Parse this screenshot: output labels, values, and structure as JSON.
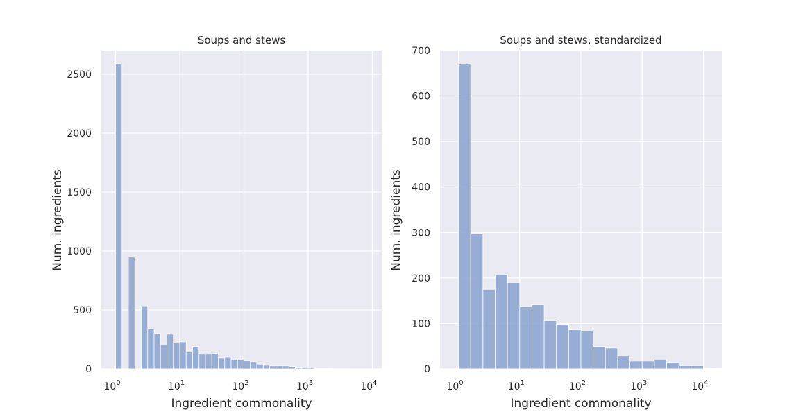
{
  "chart_data": [
    {
      "type": "bar",
      "title": "Soups and stews",
      "xlabel": "Ingredient commonality",
      "ylabel": "Num. ingredients",
      "x_scale": "log",
      "xlim": [
        0.6,
        14000
      ],
      "ylim": [
        0,
        2700
      ],
      "grid": true,
      "x_ticks": [
        {
          "base": "10",
          "exp": "0",
          "value": 1
        },
        {
          "base": "10",
          "exp": "1",
          "value": 10
        },
        {
          "base": "10",
          "exp": "2",
          "value": 100
        },
        {
          "base": "10",
          "exp": "3",
          "value": 1000
        },
        {
          "base": "10",
          "exp": "4",
          "value": 10000
        }
      ],
      "y_ticks": [
        "0",
        "500",
        "1000",
        "1500",
        "2000",
        "2500"
      ],
      "y_tick_values": [
        0,
        500,
        1000,
        1500,
        2000,
        2500
      ],
      "bin_width_log10": 0.1,
      "bins": [
        {
          "x0": 1.0,
          "value": 2585
        },
        {
          "x0": 1.5849,
          "value": 950
        },
        {
          "x0": 2.5119,
          "value": 535
        },
        {
          "x0": 3.1623,
          "value": 340
        },
        {
          "x0": 3.9811,
          "value": 300
        },
        {
          "x0": 5.0119,
          "value": 210
        },
        {
          "x0": 6.3096,
          "value": 295
        },
        {
          "x0": 7.9433,
          "value": 220
        },
        {
          "x0": 10.0,
          "value": 230
        },
        {
          "x0": 12.589,
          "value": 145
        },
        {
          "x0": 15.849,
          "value": 190
        },
        {
          "x0": 19.953,
          "value": 125
        },
        {
          "x0": 25.119,
          "value": 125
        },
        {
          "x0": 31.623,
          "value": 130
        },
        {
          "x0": 39.811,
          "value": 95
        },
        {
          "x0": 50.119,
          "value": 100
        },
        {
          "x0": 63.096,
          "value": 80
        },
        {
          "x0": 79.433,
          "value": 80
        },
        {
          "x0": 100.0,
          "value": 70
        },
        {
          "x0": 125.89,
          "value": 60
        },
        {
          "x0": 158.49,
          "value": 40
        },
        {
          "x0": 199.53,
          "value": 30
        },
        {
          "x0": 251.19,
          "value": 25
        },
        {
          "x0": 316.23,
          "value": 25
        },
        {
          "x0": 398.11,
          "value": 25
        },
        {
          "x0": 501.19,
          "value": 20
        },
        {
          "x0": 630.96,
          "value": 15
        },
        {
          "x0": 794.33,
          "value": 10
        },
        {
          "x0": 1000.0,
          "value": 8
        },
        {
          "x0": 1258.9,
          "value": 5
        },
        {
          "x0": 1584.9,
          "value": 4
        },
        {
          "x0": 1995.3,
          "value": 3
        },
        {
          "x0": 2511.9,
          "value": 2
        },
        {
          "x0": 3162.3,
          "value": 2
        },
        {
          "x0": 3981.1,
          "value": 1
        },
        {
          "x0": 5011.9,
          "value": 1
        },
        {
          "x0": 6309.6,
          "value": 1
        },
        {
          "x0": 7943.3,
          "value": 1
        }
      ]
    },
    {
      "type": "bar",
      "title": "Soups and stews, standardized",
      "xlabel": "Ingredient commonality",
      "ylabel": "Num. ingredients",
      "x_scale": "log",
      "xlim": [
        0.5,
        20000
      ],
      "ylim": [
        0,
        700
      ],
      "grid": true,
      "x_ticks": [
        {
          "base": "10",
          "exp": "0",
          "value": 1
        },
        {
          "base": "10",
          "exp": "1",
          "value": 10
        },
        {
          "base": "10",
          "exp": "2",
          "value": 100
        },
        {
          "base": "10",
          "exp": "3",
          "value": 1000
        },
        {
          "base": "10",
          "exp": "4",
          "value": 10000
        }
      ],
      "y_ticks": [
        "0",
        "100",
        "200",
        "300",
        "400",
        "500",
        "600",
        "700"
      ],
      "y_tick_values": [
        0,
        100,
        200,
        300,
        400,
        500,
        600,
        700
      ],
      "bin_width_log10": 0.2,
      "bins": [
        {
          "x0": 1.0,
          "value": 670
        },
        {
          "x0": 1.5849,
          "value": 297
        },
        {
          "x0": 2.5119,
          "value": 175
        },
        {
          "x0": 3.9811,
          "value": 207
        },
        {
          "x0": 6.3096,
          "value": 190
        },
        {
          "x0": 10.0,
          "value": 137
        },
        {
          "x0": 15.849,
          "value": 141
        },
        {
          "x0": 25.119,
          "value": 106
        },
        {
          "x0": 39.811,
          "value": 98
        },
        {
          "x0": 63.096,
          "value": 86
        },
        {
          "x0": 100.0,
          "value": 83
        },
        {
          "x0": 158.49,
          "value": 49
        },
        {
          "x0": 251.19,
          "value": 46
        },
        {
          "x0": 398.11,
          "value": 28
        },
        {
          "x0": 630.96,
          "value": 17
        },
        {
          "x0": 1000.0,
          "value": 17
        },
        {
          "x0": 1584.9,
          "value": 21
        },
        {
          "x0": 2511.9,
          "value": 14
        },
        {
          "x0": 3981.1,
          "value": 7
        },
        {
          "x0": 6309.6,
          "value": 7
        },
        {
          "x0": 10000.0,
          "value": 1
        },
        {
          "x0": 15849.0,
          "value": 1
        }
      ]
    }
  ]
}
